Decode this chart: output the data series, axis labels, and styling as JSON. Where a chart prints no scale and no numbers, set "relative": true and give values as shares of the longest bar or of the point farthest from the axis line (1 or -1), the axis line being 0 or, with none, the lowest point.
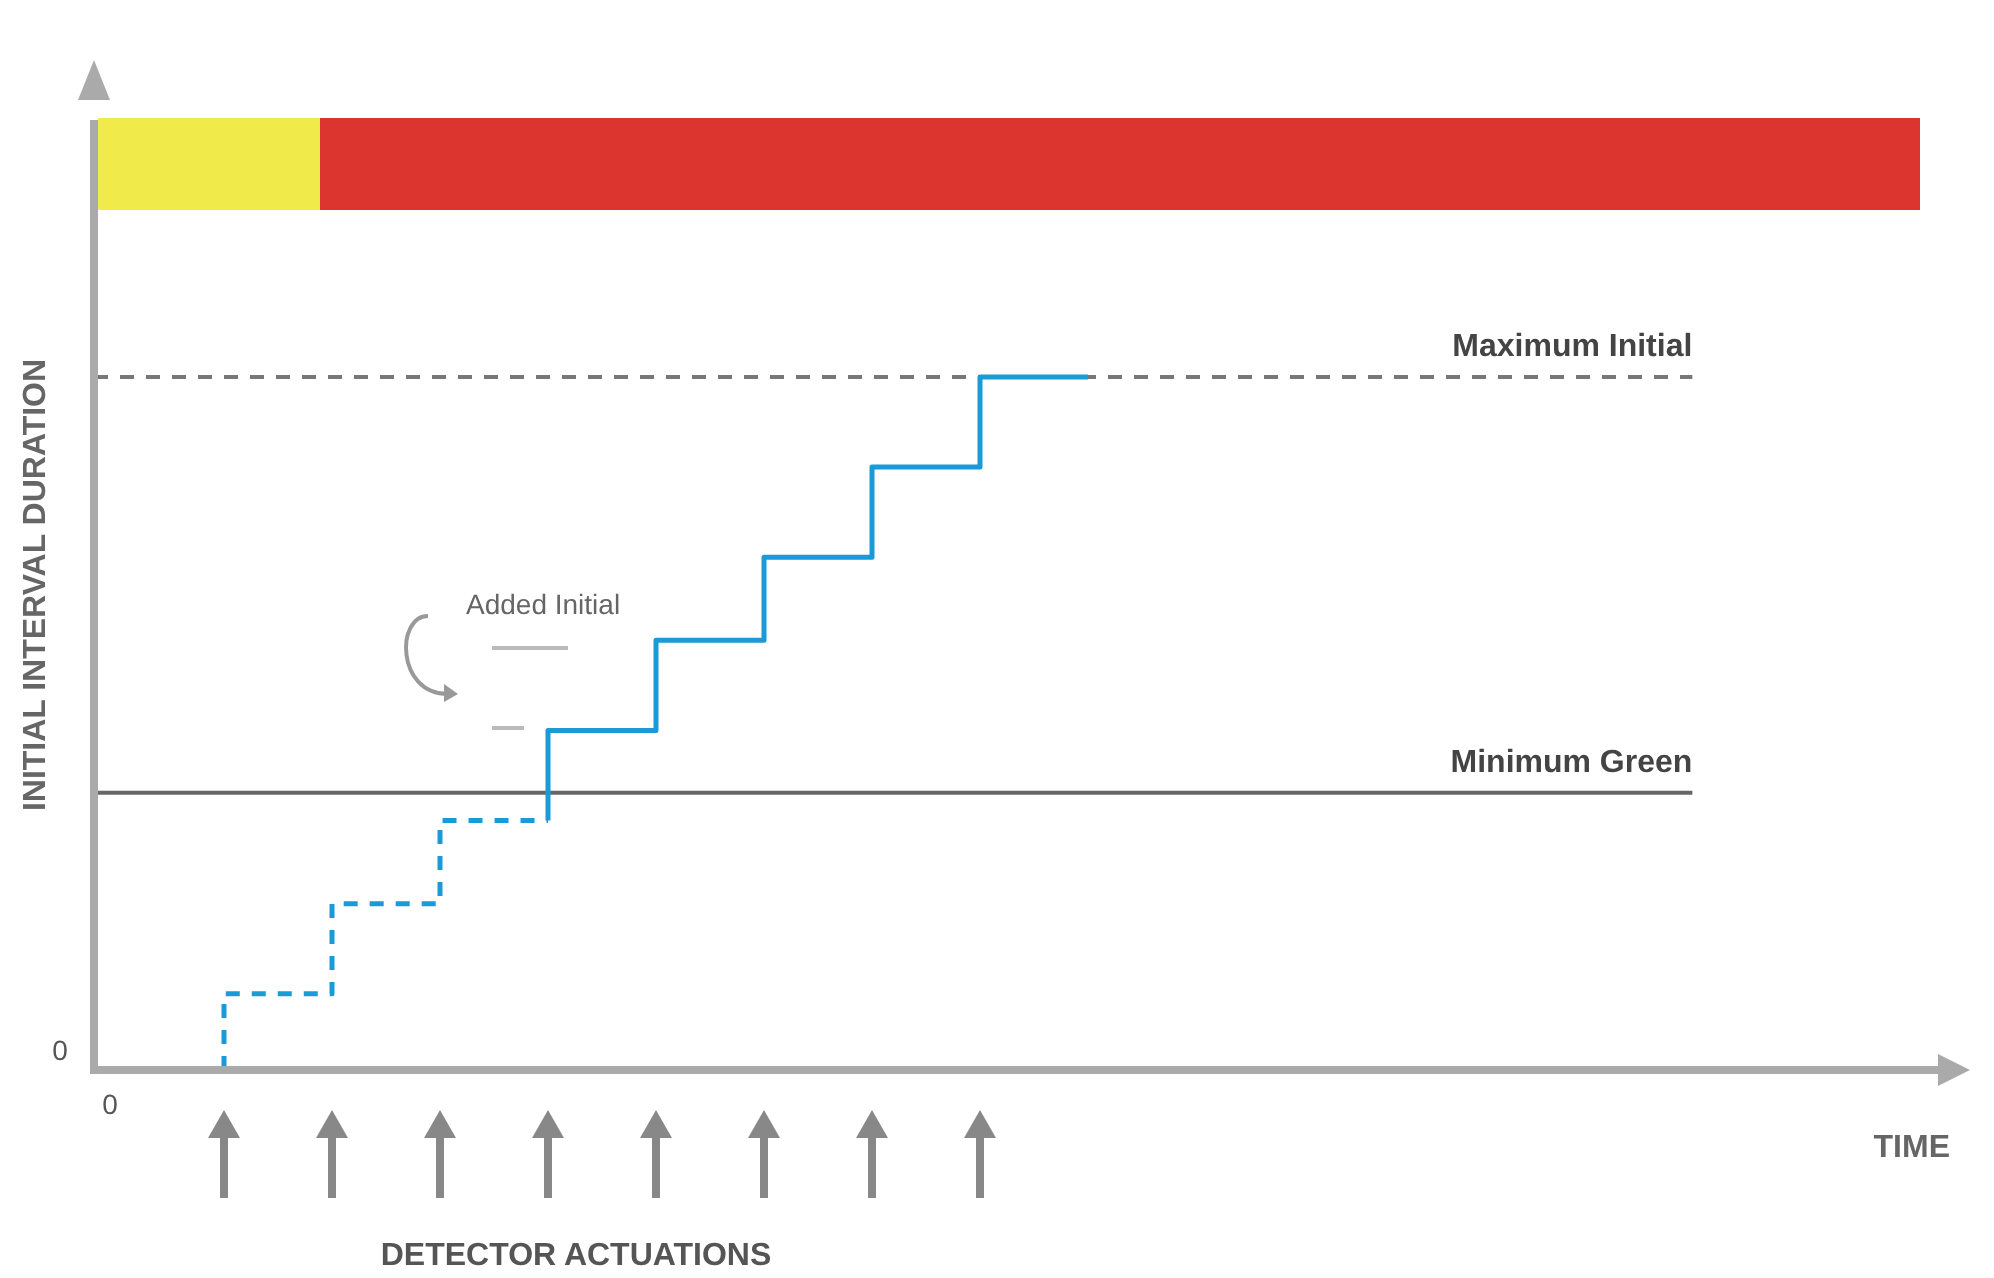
{
  "chart_data": {
    "type": "step",
    "relative": true,
    "ylabel": "INITIAL INTERVAL DURATION",
    "categories": [
      null,
      null,
      null,
      null,
      null,
      null,
      null,
      null,
      null
    ],
    "annotations": [
      "Added Initial",
      "DETECTOR ACTUATIONS",
      "0",
      "0",
      "TIME"
    ],
    "series": [
      {
        "color": "#1a9ad6",
        "line_style": "dashed",
        "values": [
          0,
          0.11,
          0.24,
          0.36,
          null,
          null,
          null,
          null,
          null
        ]
      },
      {
        "color": "#1a9ad6",
        "line_style": "solid",
        "values": [
          null,
          null,
          null,
          0.36,
          0.49,
          0.62,
          0.74,
          0.87,
          1
        ]
      }
    ],
    "ref_lines": [
      {
        "axis": "y",
        "value": 1,
        "label": "Maximum Initial",
        "color": "#777777",
        "line_style": "dashed"
      },
      {
        "axis": "y",
        "value": 0.4,
        "label": "Minimum Green",
        "color": "#666666",
        "line_style": "solid"
      }
    ]
  }
}
